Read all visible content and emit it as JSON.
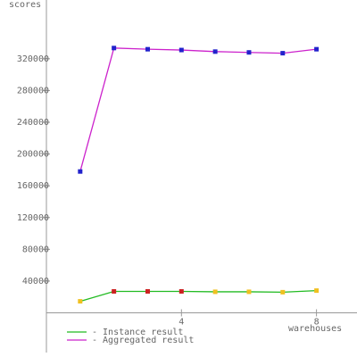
{
  "chart_data": {
    "type": "line",
    "y_label": "scores",
    "x_label": "warehouses",
    "x": [
      1,
      2,
      3,
      4,
      5,
      6,
      7,
      8
    ],
    "series": [
      {
        "name": "- Instance result",
        "color": "#22bb22",
        "values": [
          14500,
          27000,
          27000,
          27000,
          26500,
          26500,
          26000,
          28000
        ],
        "marker_colors": [
          "#f0c020",
          "#cc2222",
          "#cc2222",
          "#cc2222",
          "#f0c020",
          "#f0c020",
          "#f0c020",
          "#f0c020"
        ]
      },
      {
        "name": "- Aggregated result",
        "color": "#cc22cc",
        "values": [
          178000,
          333500,
          332000,
          331000,
          329000,
          328000,
          327000,
          332000
        ],
        "marker_colors": [
          "#2222cc",
          "#2222cc",
          "#2222cc",
          "#2222cc",
          "#2222cc",
          "#2222cc",
          "#2222cc",
          "#2222cc"
        ]
      }
    ],
    "xlim": [
      0,
      9.2
    ],
    "ylim": [
      -50000,
      394000
    ],
    "xticks": [
      4,
      8
    ],
    "yticks": [
      40000,
      80000,
      120000,
      160000,
      200000,
      240000,
      280000,
      320000
    ]
  }
}
